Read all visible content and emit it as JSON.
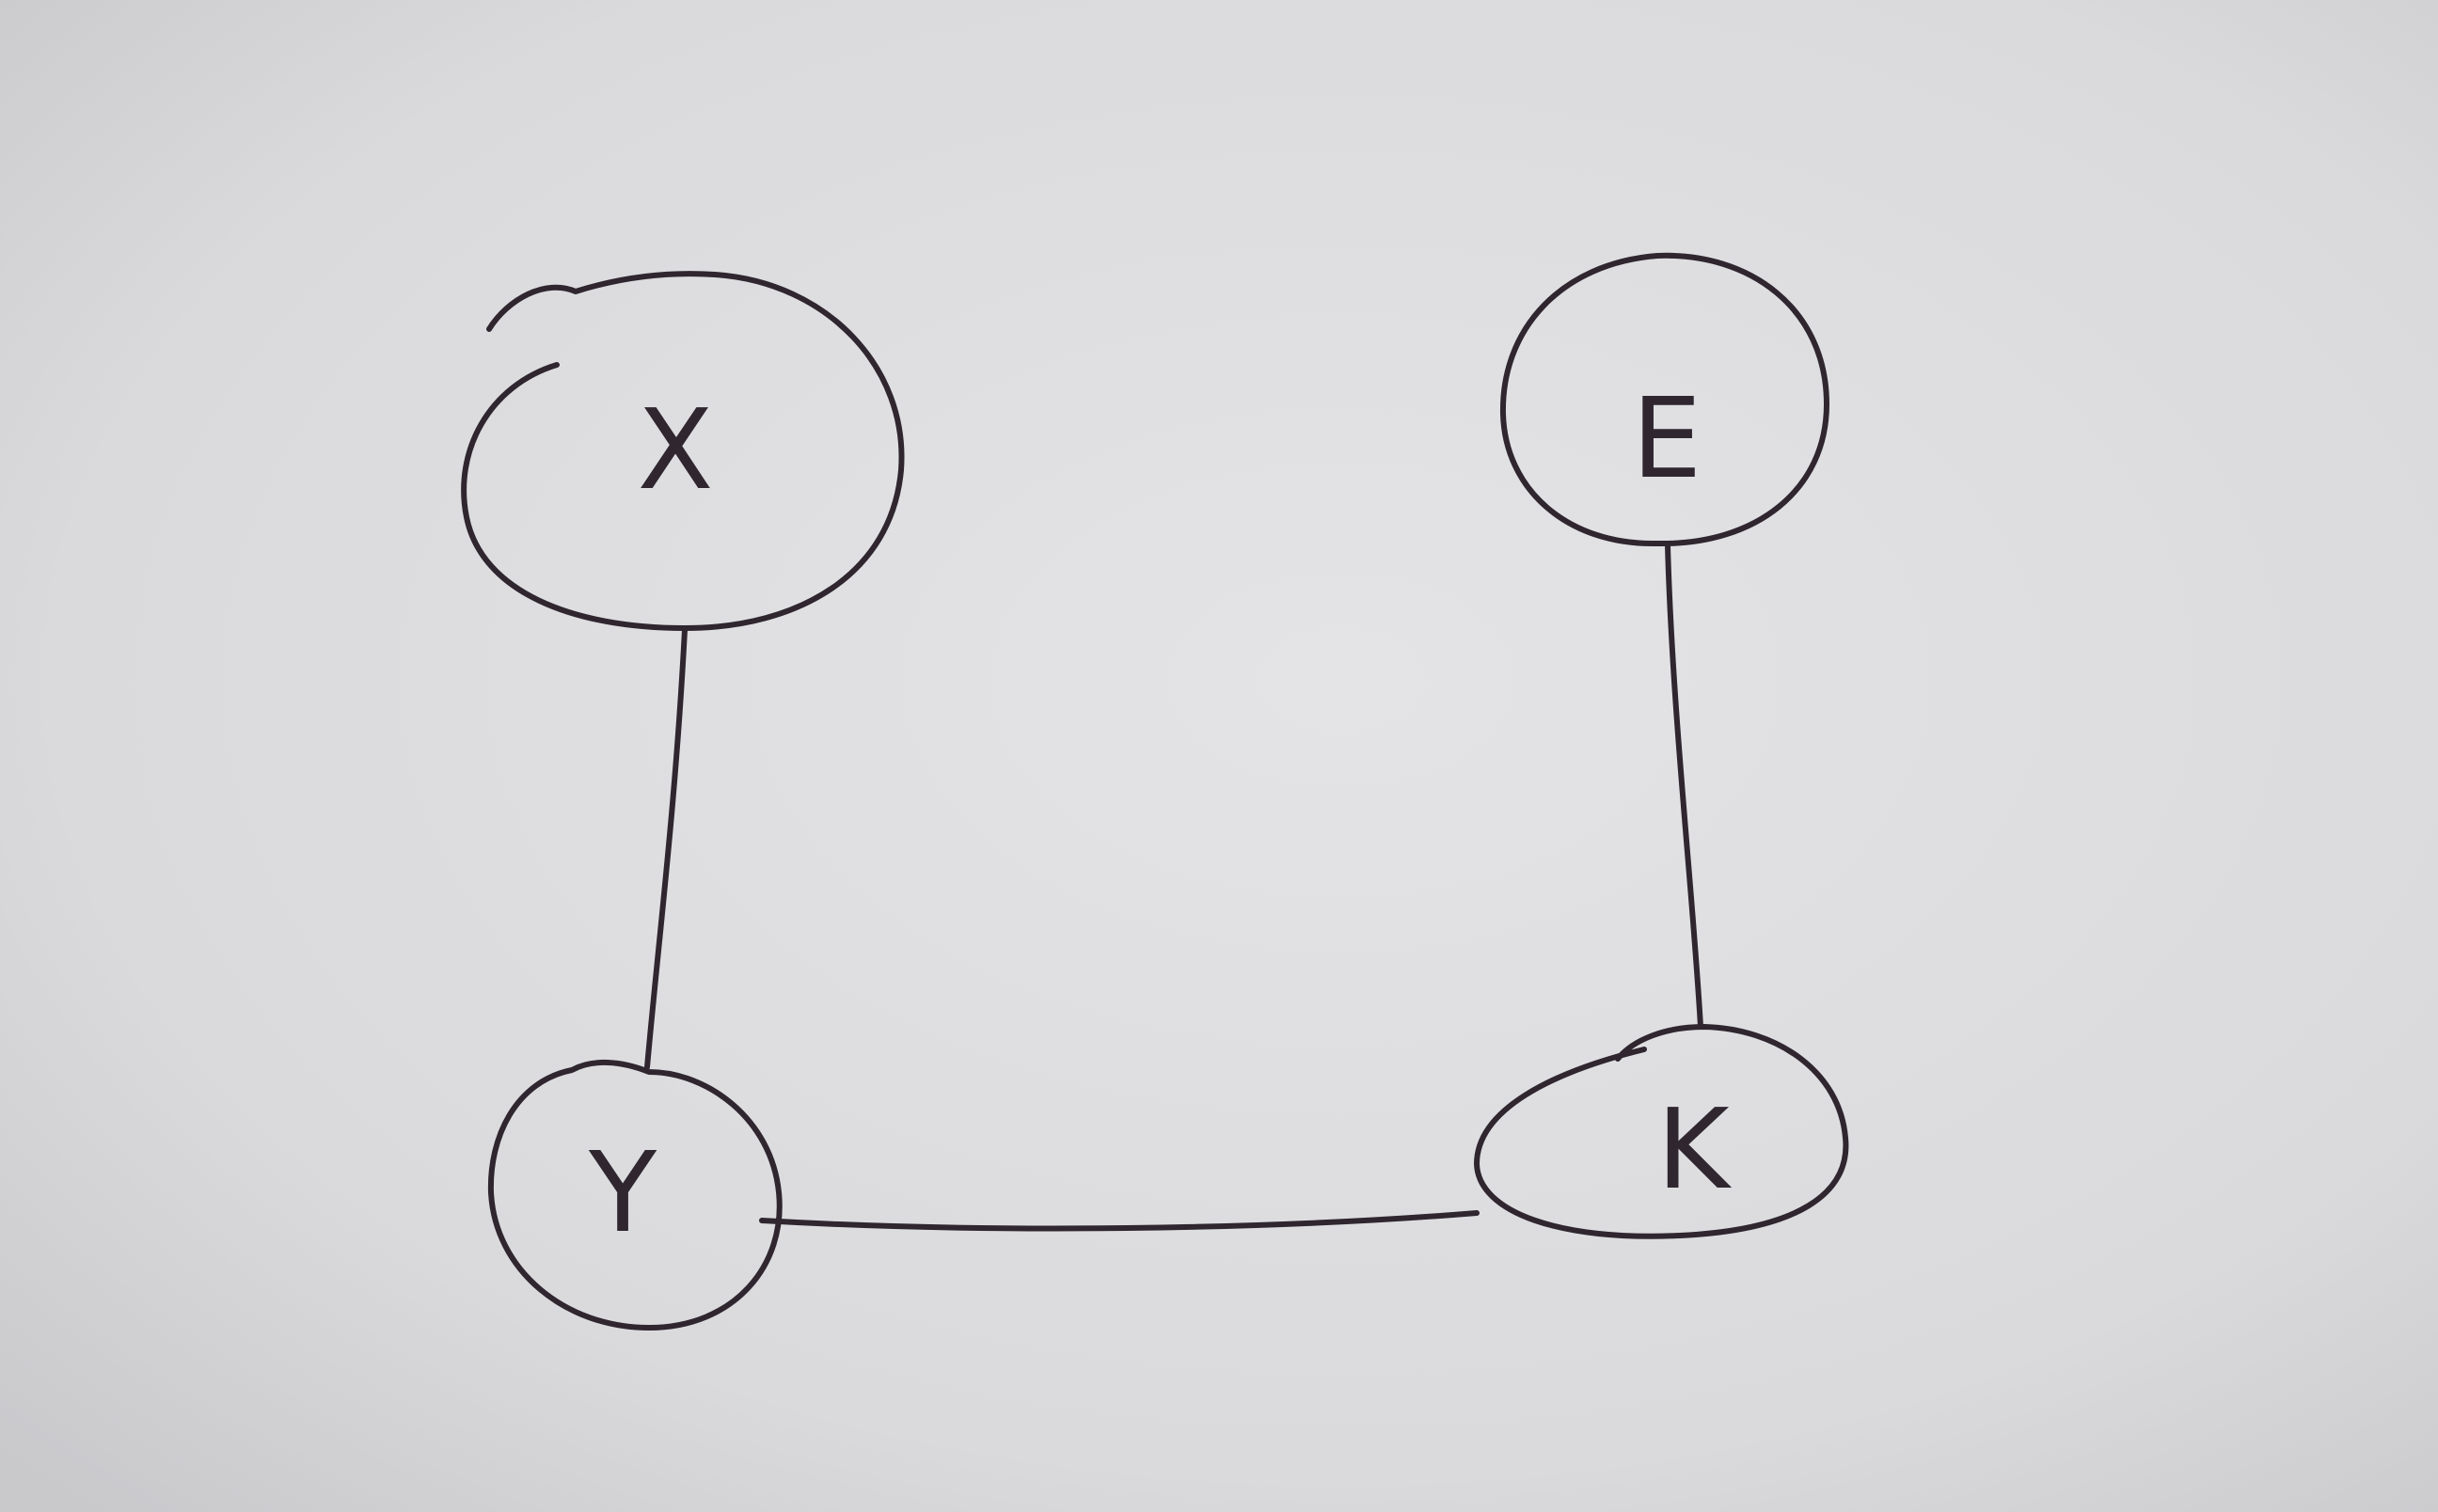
{
  "colors": {
    "paper": "#dcdcde",
    "ink": "#2f2630"
  },
  "nodes": [
    {
      "id": "X",
      "label": "X"
    },
    {
      "id": "E",
      "label": "E"
    },
    {
      "id": "Y",
      "label": "Y"
    },
    {
      "id": "K",
      "label": "K"
    }
  ],
  "edges": [
    {
      "from": "X",
      "to": "Y"
    },
    {
      "from": "E",
      "to": "K"
    },
    {
      "from": "Y",
      "to": "K"
    }
  ]
}
